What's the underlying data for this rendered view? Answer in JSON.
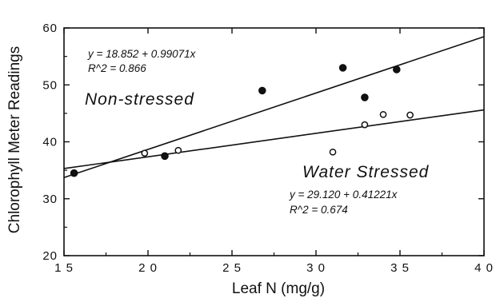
{
  "chart_data": {
    "type": "scatter",
    "xlabel": "Leaf N (mg/g)",
    "ylabel": "Chlorophyll Meter Readings",
    "xlim": [
      15,
      40
    ],
    "ylim": [
      20,
      60
    ],
    "x_ticks": [
      15,
      20,
      25,
      30,
      35,
      40
    ],
    "y_ticks": [
      20,
      30,
      40,
      50,
      60
    ],
    "x_tick_labels": [
      "1 5",
      "2 0",
      "2 5",
      "3 0",
      "3 5",
      "4 0"
    ],
    "y_tick_labels": [
      "20",
      "30",
      "40",
      "50",
      "60"
    ],
    "grid": false,
    "series": [
      {
        "name": "Non-stressed",
        "marker": "filled-circle",
        "points": [
          {
            "x": 15.6,
            "y": 34.5
          },
          {
            "x": 21.0,
            "y": 37.5
          },
          {
            "x": 26.8,
            "y": 49.0
          },
          {
            "x": 31.6,
            "y": 53.0
          },
          {
            "x": 32.9,
            "y": 47.8
          },
          {
            "x": 34.8,
            "y": 52.7
          }
        ],
        "fit": {
          "intercept": 18.852,
          "slope": 0.99071,
          "equation": "y = 18.852 + 0.99071x",
          "r2": "R^2 = 0.866"
        }
      },
      {
        "name": "Water Stressed",
        "marker": "open-circle",
        "points": [
          {
            "x": 19.8,
            "y": 38.0
          },
          {
            "x": 21.8,
            "y": 38.5
          },
          {
            "x": 31.0,
            "y": 38.2
          },
          {
            "x": 32.9,
            "y": 43.0
          },
          {
            "x": 34.0,
            "y": 44.8
          },
          {
            "x": 35.6,
            "y": 44.7
          }
        ],
        "fit": {
          "intercept": 29.12,
          "slope": 0.41221,
          "equation": "y = 29.120 + 0.41221x",
          "r2": "R^2 = 0.674"
        }
      }
    ]
  }
}
